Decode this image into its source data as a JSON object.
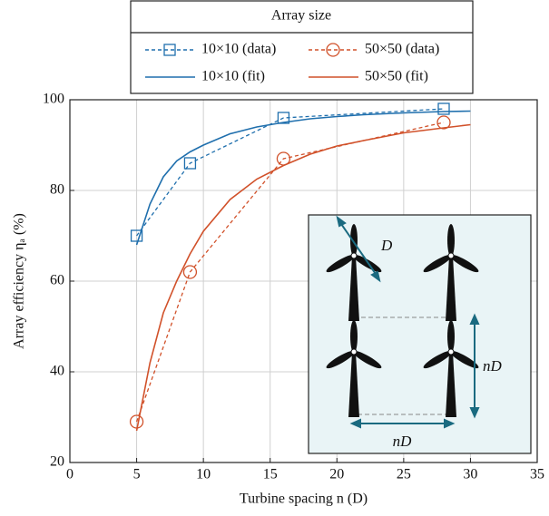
{
  "chart_data": {
    "type": "line",
    "xlabel": "Turbine spacing n (D)",
    "ylabel": "Array efficiency ηₐ (%)",
    "xlim": [
      0,
      35
    ],
    "xticks": [
      0,
      5,
      10,
      15,
      20,
      25,
      30,
      35
    ],
    "ylim": [
      20,
      100
    ],
    "yticks": [
      20,
      40,
      60,
      80,
      100
    ],
    "grid": true,
    "legend": {
      "title": "Array size",
      "position": "top"
    },
    "series": [
      {
        "name": "10×10 (data)",
        "color": "#1f6fad",
        "style": "dashed",
        "marker": "square",
        "x": [
          5,
          9,
          16,
          28
        ],
        "values": [
          70,
          86,
          96,
          98
        ]
      },
      {
        "name": "50×50 (data)",
        "color": "#d1512a",
        "style": "dashed",
        "marker": "circle",
        "x": [
          5,
          9,
          16,
          28
        ],
        "values": [
          29,
          62,
          87,
          95
        ]
      },
      {
        "name": "10×10 (fit)",
        "color": "#1f6fad",
        "style": "solid",
        "x": [
          5,
          6,
          7,
          8,
          9,
          10,
          12,
          14,
          16,
          18,
          20,
          22,
          25,
          28,
          30
        ],
        "values": [
          68,
          77,
          83,
          86.5,
          88.5,
          90,
          92.5,
          94,
          95,
          95.8,
          96.3,
          96.7,
          97.1,
          97.4,
          97.5
        ]
      },
      {
        "name": "50×50 (fit)",
        "color": "#d1512a",
        "style": "solid",
        "x": [
          5,
          6,
          7,
          8,
          9,
          10,
          12,
          14,
          16,
          18,
          20,
          22,
          25,
          28,
          30
        ],
        "values": [
          27,
          42,
          53,
          60,
          66,
          71,
          78,
          82.5,
          85.5,
          88,
          89.8,
          91,
          92.7,
          93.8,
          94.5
        ]
      }
    ],
    "inset": {
      "labels": [
        "D",
        "nD",
        "nD"
      ]
    }
  }
}
